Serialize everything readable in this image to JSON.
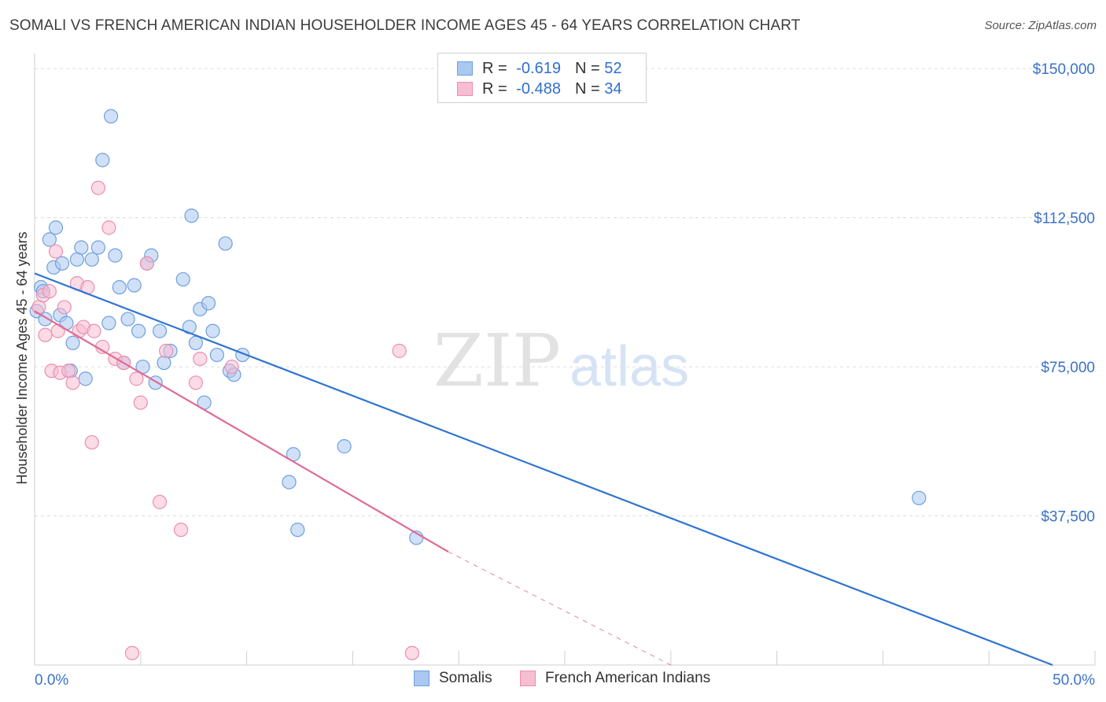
{
  "title": "SOMALI VS FRENCH AMERICAN INDIAN HOUSEHOLDER INCOME AGES 45 - 64 YEARS CORRELATION CHART",
  "source": "Source: ZipAtlas.com",
  "watermark": {
    "zip": "ZIP",
    "atlas": "atlas"
  },
  "colors": {
    "somali_fill": "#aac8f0",
    "somali_stroke": "#6f9fe0",
    "somali_line": "#2f74d0",
    "french_fill": "#f7bdd0",
    "french_stroke": "#ee8eaf",
    "french_line": "#e06b96",
    "axis_text": "#3a72c8",
    "grid": "#dcdcdc"
  },
  "legend": {
    "rows": [
      {
        "r_label": "R = ",
        "r_value": "-0.619",
        "n_label": "N = ",
        "n_value": "52"
      },
      {
        "r_label": "R = ",
        "r_value": "-0.488",
        "n_label": "N = ",
        "n_value": "34"
      }
    ]
  },
  "bottom_legend": {
    "somali": "Somalis",
    "french": "French American Indians"
  },
  "chart_data": {
    "type": "scatter",
    "xlabel": "",
    "ylabel": "Householder Income Ages 45 - 64 years",
    "xlim": [
      0,
      50
    ],
    "ylim": [
      0,
      153000
    ],
    "x_tick_labels": {
      "left": "0.0%",
      "right": "50.0%"
    },
    "y_ticks": [
      {
        "value": 150000,
        "label": "$150,000"
      },
      {
        "value": 112500,
        "label": "$112,500"
      },
      {
        "value": 75000,
        "label": "$75,000"
      },
      {
        "value": 37500,
        "label": "$37,500"
      }
    ],
    "series": [
      {
        "name": "Somalis",
        "r": -0.619,
        "n": 52,
        "trend": {
          "x0": 0,
          "y0": 98500,
          "x1": 48,
          "y1": 0
        },
        "points": [
          [
            0.1,
            89000
          ],
          [
            0.3,
            95000
          ],
          [
            0.5,
            87000
          ],
          [
            0.7,
            107000
          ],
          [
            0.9,
            100000
          ],
          [
            1.0,
            110000
          ],
          [
            1.2,
            88000
          ],
          [
            1.3,
            101000
          ],
          [
            1.5,
            86000
          ],
          [
            1.7,
            74000
          ],
          [
            1.8,
            81000
          ],
          [
            2.0,
            102000
          ],
          [
            2.2,
            105000
          ],
          [
            2.4,
            72000
          ],
          [
            2.7,
            102000
          ],
          [
            3.0,
            105000
          ],
          [
            3.2,
            127000
          ],
          [
            3.5,
            86000
          ],
          [
            3.6,
            138000
          ],
          [
            3.8,
            103000
          ],
          [
            4.0,
            95000
          ],
          [
            4.2,
            76000
          ],
          [
            4.4,
            87000
          ],
          [
            4.7,
            95500
          ],
          [
            4.9,
            84000
          ],
          [
            5.1,
            75000
          ],
          [
            5.3,
            101000
          ],
          [
            5.5,
            103000
          ],
          [
            5.7,
            71000
          ],
          [
            5.9,
            84000
          ],
          [
            6.1,
            76000
          ],
          [
            6.4,
            79000
          ],
          [
            7.0,
            97000
          ],
          [
            7.3,
            85000
          ],
          [
            7.4,
            113000
          ],
          [
            7.6,
            81000
          ],
          [
            7.8,
            89500
          ],
          [
            8.0,
            66000
          ],
          [
            8.2,
            91000
          ],
          [
            8.4,
            84000
          ],
          [
            8.6,
            78000
          ],
          [
            9.0,
            106000
          ],
          [
            9.2,
            74000
          ],
          [
            9.4,
            73000
          ],
          [
            9.8,
            78000
          ],
          [
            12.0,
            46000
          ],
          [
            12.2,
            53000
          ],
          [
            12.4,
            34000
          ],
          [
            14.6,
            55000
          ],
          [
            18.0,
            32000
          ],
          [
            41.7,
            42000
          ],
          [
            0.4,
            94000
          ]
        ]
      },
      {
        "name": "French American Indians",
        "r": -0.488,
        "n": 34,
        "trend": {
          "x0": 0,
          "y0": 89000,
          "x1": 19.5,
          "y1": 28500,
          "dash_x1": 30,
          "dash_y1": 0
        },
        "points": [
          [
            0.2,
            90000
          ],
          [
            0.4,
            93000
          ],
          [
            0.5,
            83000
          ],
          [
            0.7,
            94000
          ],
          [
            0.8,
            74000
          ],
          [
            1.0,
            104000
          ],
          [
            1.1,
            84000
          ],
          [
            1.2,
            73500
          ],
          [
            1.4,
            90000
          ],
          [
            1.6,
            74000
          ],
          [
            1.8,
            71000
          ],
          [
            2.0,
            96000
          ],
          [
            2.1,
            84000
          ],
          [
            2.3,
            85000
          ],
          [
            2.5,
            95000
          ],
          [
            2.7,
            56000
          ],
          [
            2.8,
            84000
          ],
          [
            3.0,
            120000
          ],
          [
            3.2,
            80000
          ],
          [
            3.5,
            110000
          ],
          [
            3.8,
            77000
          ],
          [
            4.2,
            76000
          ],
          [
            4.6,
            3000
          ],
          [
            4.8,
            72000
          ],
          [
            5.0,
            66000
          ],
          [
            5.3,
            101000
          ],
          [
            5.9,
            41000
          ],
          [
            6.2,
            79000
          ],
          [
            6.9,
            34000
          ],
          [
            7.6,
            71000
          ],
          [
            7.8,
            77000
          ],
          [
            9.3,
            75000
          ],
          [
            17.2,
            79000
          ],
          [
            17.8,
            3000
          ]
        ]
      }
    ]
  }
}
